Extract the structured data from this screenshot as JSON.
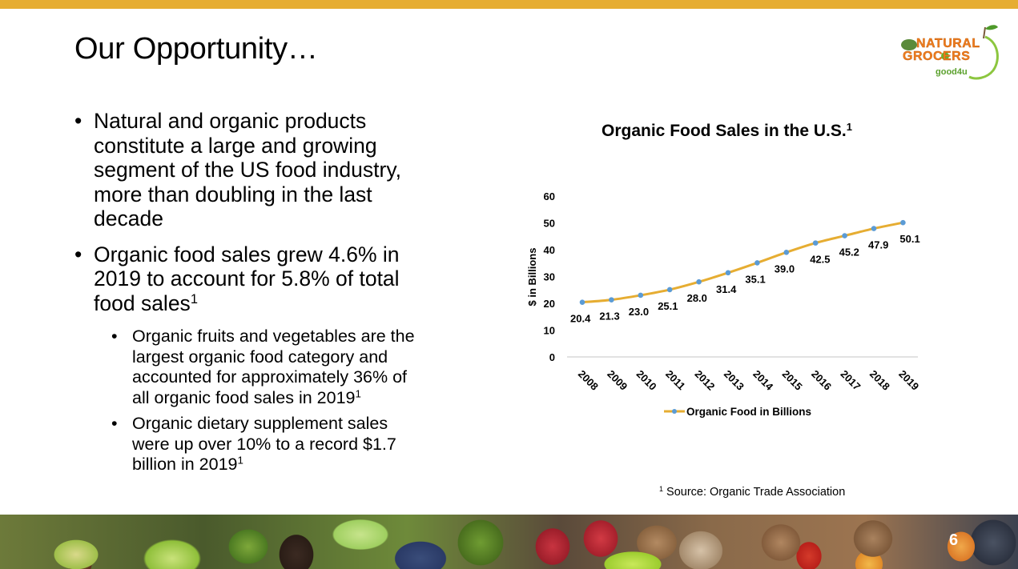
{
  "slide": {
    "title": "Our Opportunity…",
    "page_number": "6",
    "accent_color": "#E6AD32"
  },
  "logo": {
    "line1": "NATURAL",
    "line2": "GROCERS",
    "tagline": "good4u"
  },
  "bullets": [
    {
      "level": 1,
      "text": "Natural and organic products constitute a large and growing segment of the US food industry, more than doubling in the last decade",
      "sup": ""
    },
    {
      "level": 1,
      "text": "Organic food sales grew 4.6% in 2019 to account for 5.8% of total food sales",
      "sup": "1"
    },
    {
      "level": 2,
      "text": "Organic fruits and vegetables are the largest organic food category and accounted for approximately 36% of all organic food sales in 2019",
      "sup": "1"
    },
    {
      "level": 2,
      "text": "Organic dietary supplement sales were up over 10% to a record $1.7 billion in 2019",
      "sup": "1"
    }
  ],
  "footnote": {
    "marker": "1",
    "text": " Source: Organic Trade Association"
  },
  "chart_data": {
    "type": "line",
    "title": "Organic Food Sales in the U.S.",
    "title_sup": "1",
    "xlabel": "",
    "ylabel": "$ in Billions",
    "ylim": [
      0,
      60
    ],
    "yticks": [
      0,
      10,
      20,
      30,
      40,
      50,
      60
    ],
    "grid": false,
    "legend_position": "bottom",
    "categories": [
      "2008",
      "2009",
      "2010",
      "2011",
      "2012",
      "2013",
      "2014",
      "2015",
      "2016",
      "2017",
      "2018",
      "2019"
    ],
    "series": [
      {
        "name": "Organic Food in Billions",
        "line_color": "#E6AD32",
        "marker_color": "#5B9BD5",
        "values": [
          20.4,
          21.3,
          23.0,
          25.1,
          28.0,
          31.4,
          35.1,
          39.0,
          42.5,
          45.2,
          47.9,
          50.1
        ],
        "labels": [
          "20.4",
          "21.3",
          "23.0",
          "25.1",
          "28.0",
          "31.4",
          "35.1",
          "39.0",
          "42.5",
          "45.2",
          "47.9",
          "50.1"
        ]
      }
    ]
  }
}
